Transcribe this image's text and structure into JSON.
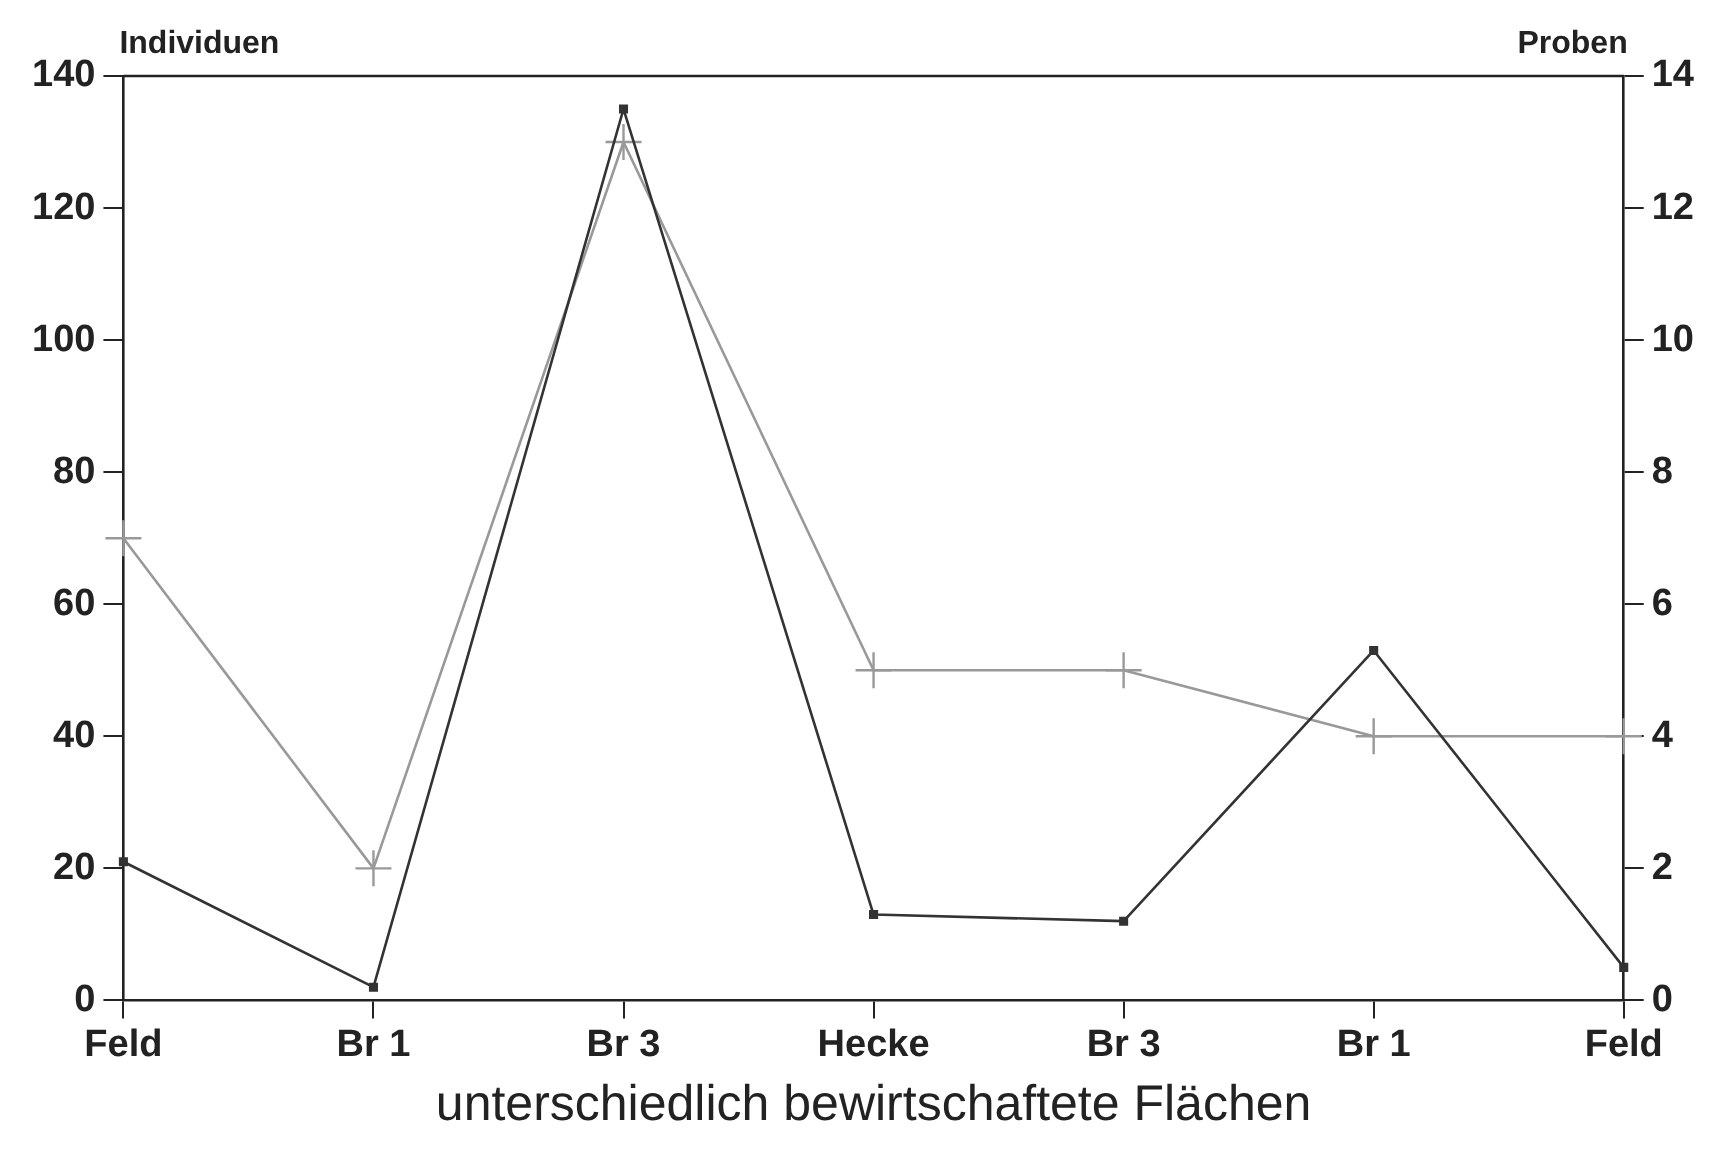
{
  "chart_data": {
    "type": "line",
    "xlabel": "unterschiedlich bewirtschaftete Flächen",
    "ylabel": "Individuen",
    "y2label": "Proben",
    "categories": [
      "Feld",
      "Br 1",
      "Br 3",
      "Hecke",
      "Br 3",
      "Br 1",
      "Feld"
    ],
    "series": [
      {
        "color": "#333333",
        "values": [
          21,
          2,
          135,
          13,
          12,
          53,
          5
        ],
        "marker": "square"
      },
      {
        "color": "#999999",
        "values": [
          7,
          2,
          13,
          5,
          5,
          4,
          4
        ],
        "axis": "y2",
        "marker": "cross"
      }
    ],
    "ylim": [
      0,
      140
    ],
    "yticks": [
      0,
      20,
      40,
      60,
      80,
      100,
      120,
      140
    ],
    "y2lim": [
      0,
      14
    ],
    "y2ticks": [
      0,
      2,
      4,
      6,
      8,
      10,
      12,
      14
    ],
    "grid": false,
    "legend": false,
    "line_style": "solid"
  }
}
